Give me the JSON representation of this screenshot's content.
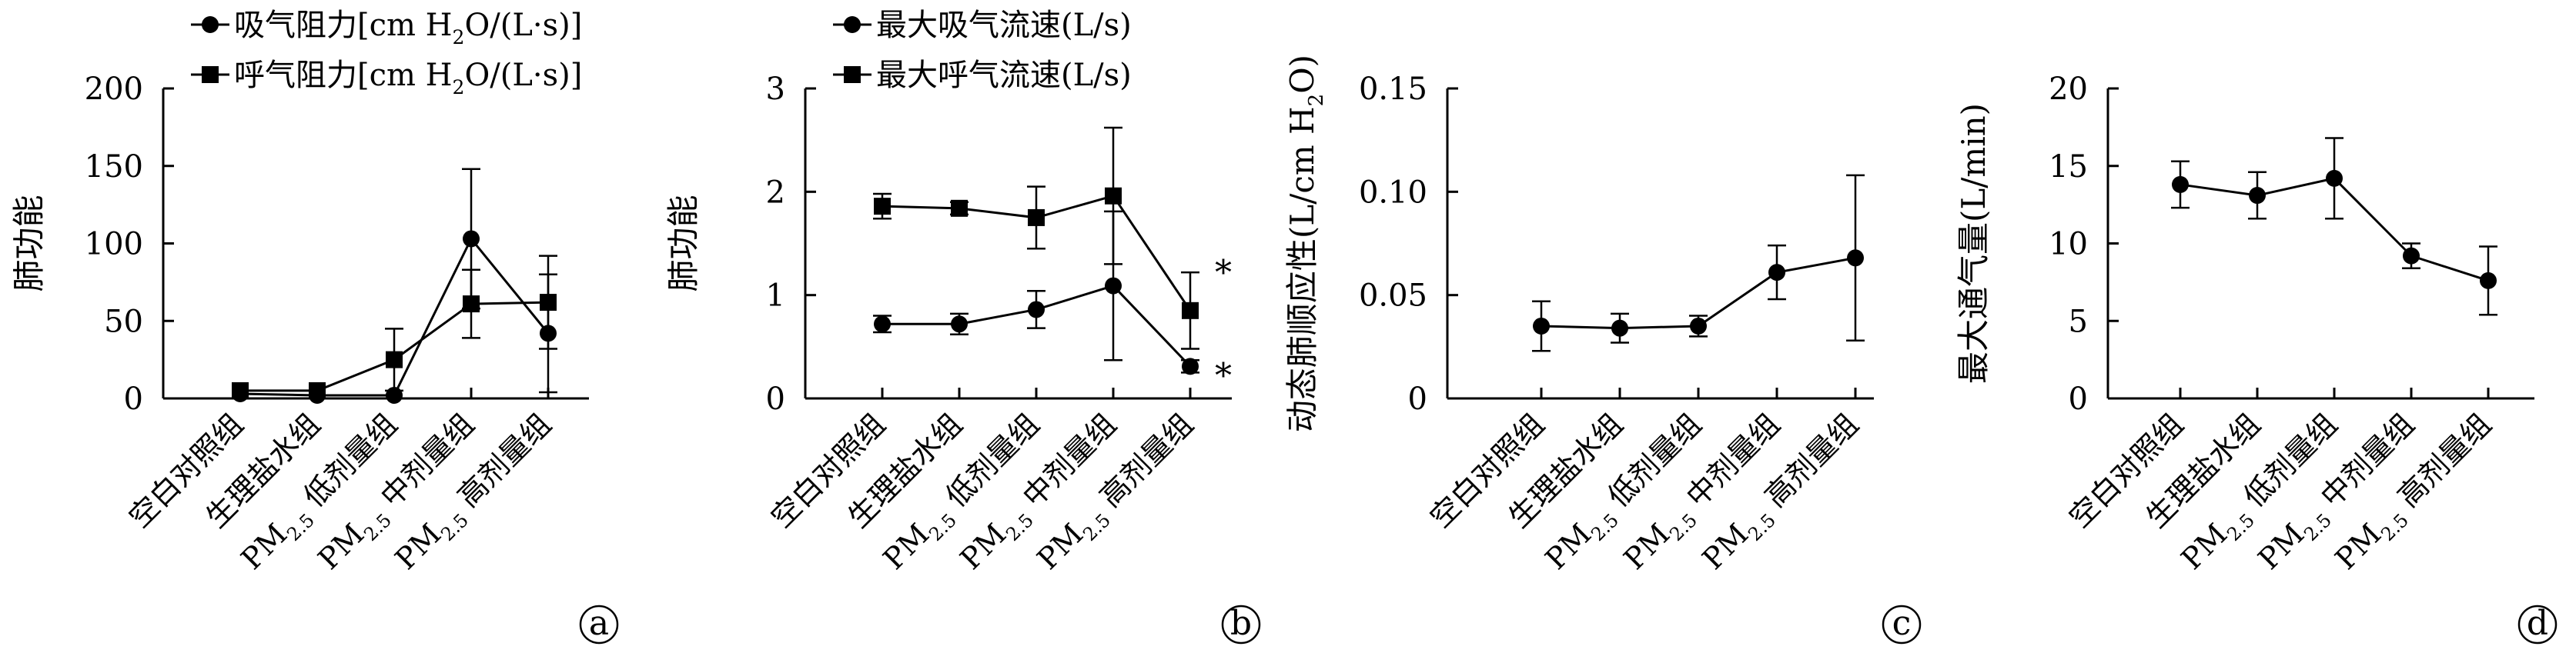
{
  "chart_data": [
    {
      "panel_label": "a",
      "type": "line",
      "ylabel": "肺功能",
      "ylim": [
        0,
        200
      ],
      "yticks": [
        "0",
        "50",
        "100",
        "150",
        "200"
      ],
      "categories": [
        {
          "pre": "",
          "sub": "",
          "post": "空白对照组"
        },
        {
          "pre": "",
          "sub": "",
          "post": "生理盐水组"
        },
        {
          "pre": "PM",
          "sub": "2.5",
          "post": " 低剂量组"
        },
        {
          "pre": "PM",
          "sub": "2.5",
          "post": " 中剂量组"
        },
        {
          "pre": "PM",
          "sub": "2.5",
          "post": " 高剂量组"
        }
      ],
      "legend": [
        {
          "pre": "吸气阻力[cm H",
          "sub": "2",
          "post": "O/(L·s)]",
          "marker": "circle"
        },
        {
          "pre": "呼气阻力[cm H",
          "sub": "2",
          "post": "O/(L·s)]",
          "marker": "square"
        }
      ],
      "series": [
        {
          "marker": "circle",
          "values": [
            3,
            2,
            2,
            103,
            42
          ],
          "errors": [
            0,
            0,
            0,
            45,
            38
          ]
        },
        {
          "marker": "square",
          "values": [
            5,
            5,
            25,
            61,
            62
          ],
          "errors": [
            0,
            0,
            20,
            22,
            30
          ]
        }
      ],
      "annotations": []
    },
    {
      "panel_label": "b",
      "type": "line",
      "ylabel": "肺功能",
      "ylim": [
        0,
        3
      ],
      "yticks": [
        "0",
        "1",
        "2",
        "3"
      ],
      "categories": [
        {
          "pre": "",
          "sub": "",
          "post": "空白对照组"
        },
        {
          "pre": "",
          "sub": "",
          "post": "生理盐水组"
        },
        {
          "pre": "PM",
          "sub": "2.5",
          "post": " 低剂量组"
        },
        {
          "pre": "PM",
          "sub": "2.5",
          "post": " 中剂量组"
        },
        {
          "pre": "PM",
          "sub": "2.5",
          "post": " 高剂量组"
        }
      ],
      "legend": [
        {
          "pre": "最大吸气流速(L/s)",
          "sub": "",
          "post": "",
          "marker": "circle"
        },
        {
          "pre": "最大呼气流速(L/s)",
          "sub": "",
          "post": "",
          "marker": "square"
        }
      ],
      "series": [
        {
          "marker": "circle",
          "values": [
            0.72,
            0.72,
            0.86,
            1.09,
            0.31
          ],
          "errors": [
            0.08,
            0.1,
            0.18,
            0.72,
            0.06
          ]
        },
        {
          "marker": "square",
          "values": [
            1.86,
            1.84,
            1.75,
            1.96,
            0.85
          ],
          "errors": [
            0.12,
            0.06,
            0.3,
            0.66,
            0.37
          ]
        }
      ],
      "annotations": [
        {
          "text": "*",
          "category_index": 4,
          "y": 1.3
        },
        {
          "text": "*",
          "category_index": 4,
          "y": 0.3
        }
      ]
    },
    {
      "panel_label": "c",
      "type": "line",
      "ylabel_parts": {
        "pre": "动态肺顺应性(L/cm H",
        "sub": "2",
        "post": "O)"
      },
      "ylim": [
        0,
        0.15
      ],
      "yticks": [
        "0",
        "0.05",
        "0.10",
        "0.15"
      ],
      "categories": [
        {
          "pre": "",
          "sub": "",
          "post": "空白对照组"
        },
        {
          "pre": "",
          "sub": "",
          "post": "生理盐水组"
        },
        {
          "pre": "PM",
          "sub": "2.5",
          "post": " 低剂量组"
        },
        {
          "pre": "PM",
          "sub": "2.5",
          "post": " 中剂量组"
        },
        {
          "pre": "PM",
          "sub": "2.5",
          "post": " 高剂量组"
        }
      ],
      "legend": [],
      "series": [
        {
          "marker": "circle",
          "values": [
            0.035,
            0.034,
            0.035,
            0.061,
            0.068
          ],
          "errors": [
            0.012,
            0.007,
            0.005,
            0.013,
            0.04
          ]
        }
      ],
      "annotations": []
    },
    {
      "panel_label": "d",
      "type": "line",
      "ylabel": "最大通气量(L/min)",
      "ylim": [
        0,
        20
      ],
      "yticks": [
        "0",
        "5",
        "10",
        "15",
        "20"
      ],
      "categories": [
        {
          "pre": "",
          "sub": "",
          "post": "空白对照组"
        },
        {
          "pre": "",
          "sub": "",
          "post": "生理盐水组"
        },
        {
          "pre": "PM",
          "sub": "2.5",
          "post": " 低剂量组"
        },
        {
          "pre": "PM",
          "sub": "2.5",
          "post": " 中剂量组"
        },
        {
          "pre": "PM",
          "sub": "2.5",
          "post": " 高剂量组"
        }
      ],
      "legend": [],
      "series": [
        {
          "marker": "circle",
          "values": [
            13.8,
            13.1,
            14.2,
            9.2,
            7.6
          ],
          "errors": [
            1.5,
            1.5,
            2.6,
            0.8,
            2.2
          ]
        }
      ],
      "annotations": []
    }
  ]
}
